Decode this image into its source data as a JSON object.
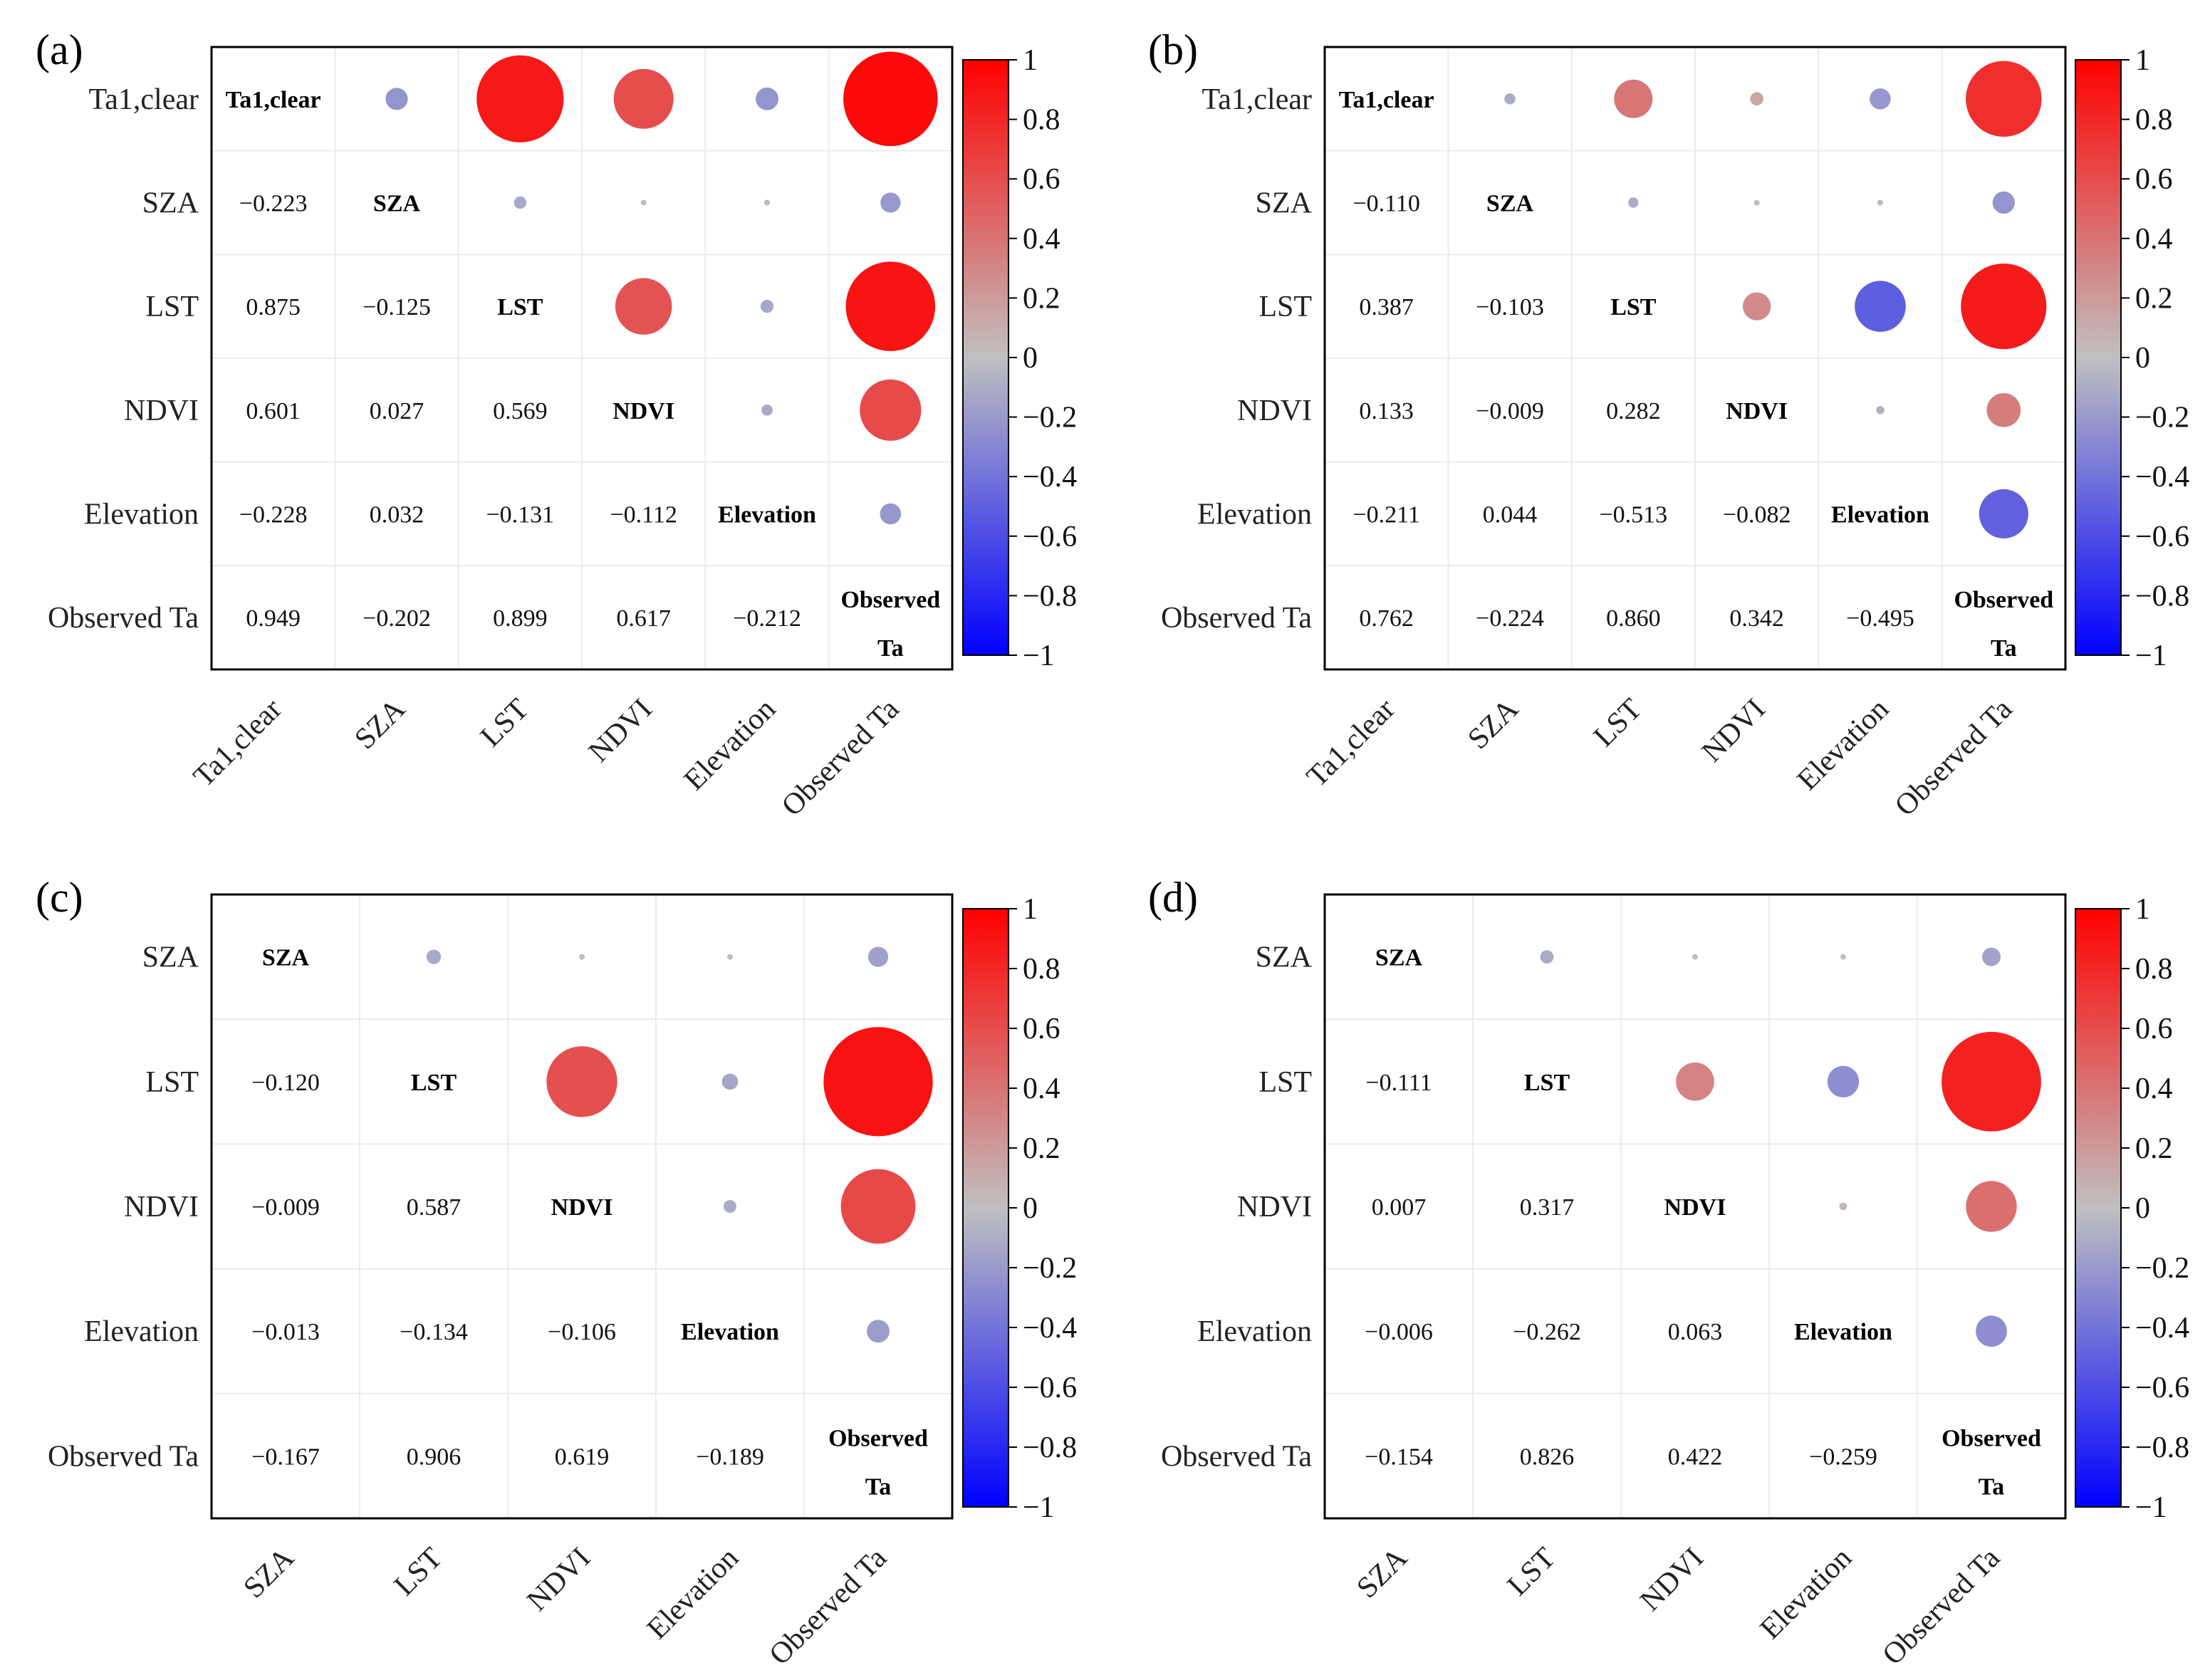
{
  "colors": {
    "negative": "#0000ff",
    "neutral": "#c0c0c0",
    "positive": "#ff0000"
  },
  "chart_data": [
    {
      "type": "heatmap",
      "panel_label": "(a)",
      "variables": [
        "Ta1,clear",
        "SZA",
        "LST",
        "NDVI",
        "Elevation",
        "Observed Ta"
      ],
      "diagonal_labels": [
        "Ta1,clear",
        "SZA",
        "LST",
        "NDVI",
        "Elevation",
        "Observed\nTa"
      ],
      "matrix": [
        [
          1,
          -0.223,
          0.875,
          0.601,
          -0.228,
          0.949
        ],
        [
          -0.223,
          1,
          -0.125,
          0.027,
          0.032,
          -0.202
        ],
        [
          0.875,
          -0.125,
          1,
          0.569,
          -0.131,
          0.899
        ],
        [
          0.601,
          0.027,
          0.569,
          1,
          -0.112,
          0.617
        ],
        [
          -0.228,
          0.032,
          -0.131,
          -0.112,
          1,
          -0.212
        ],
        [
          0.949,
          -0.202,
          0.899,
          0.617,
          -0.212,
          1
        ]
      ],
      "value_labels": [
        [
          "",
          "",
          "",
          "",
          "",
          ""
        ],
        [
          "−0.223",
          "",
          "",
          "",
          "",
          ""
        ],
        [
          "0.875",
          "−0.125",
          "",
          "",
          "",
          ""
        ],
        [
          "0.601",
          "0.027",
          "0.569",
          "",
          "",
          ""
        ],
        [
          "−0.228",
          "0.032",
          "−0.131",
          "−0.112",
          "",
          ""
        ],
        [
          "0.949",
          "−0.202",
          "0.899",
          "0.617",
          "−0.212",
          ""
        ]
      ],
      "colorbar": {
        "range": [
          -1,
          1
        ],
        "ticks": [
          "1",
          "0.8",
          "0.6",
          "0.4",
          "0.2",
          "0",
          "−0.2",
          "−0.4",
          "−0.6",
          "−0.8",
          "−1"
        ]
      }
    },
    {
      "type": "heatmap",
      "panel_label": "(b)",
      "variables": [
        "Ta1,clear",
        "SZA",
        "LST",
        "NDVI",
        "Elevation",
        "Observed Ta"
      ],
      "diagonal_labels": [
        "Ta1,clear",
        "SZA",
        "LST",
        "NDVI",
        "Elevation",
        "Observed\nTa"
      ],
      "matrix": [
        [
          1,
          -0.11,
          0.387,
          0.133,
          -0.211,
          0.762
        ],
        [
          -0.11,
          1,
          -0.103,
          -0.009,
          0.044,
          -0.224
        ],
        [
          0.387,
          -0.103,
          1,
          0.282,
          -0.513,
          0.86
        ],
        [
          0.133,
          -0.009,
          0.282,
          1,
          -0.082,
          0.342
        ],
        [
          -0.211,
          0.044,
          -0.513,
          -0.082,
          1,
          -0.495
        ],
        [
          0.762,
          -0.224,
          0.86,
          0.342,
          -0.495,
          1
        ]
      ],
      "value_labels": [
        [
          "",
          "",
          "",
          "",
          "",
          ""
        ],
        [
          "−0.110",
          "",
          "",
          "",
          "",
          ""
        ],
        [
          "0.387",
          "−0.103",
          "",
          "",
          "",
          ""
        ],
        [
          "0.133",
          "−0.009",
          "0.282",
          "",
          "",
          ""
        ],
        [
          "−0.211",
          "0.044",
          "−0.513",
          "−0.082",
          "",
          ""
        ],
        [
          "0.762",
          "−0.224",
          "0.860",
          "0.342",
          "−0.495",
          ""
        ]
      ],
      "colorbar": {
        "range": [
          -1,
          1
        ],
        "ticks": [
          "1",
          "0.8",
          "0.6",
          "0.4",
          "0.2",
          "0",
          "−0.2",
          "−0.4",
          "−0.6",
          "−0.8",
          "−1"
        ]
      }
    },
    {
      "type": "heatmap",
      "panel_label": "(c)",
      "variables": [
        "SZA",
        "LST",
        "NDVI",
        "Elevation",
        "Observed Ta"
      ],
      "diagonal_labels": [
        "SZA",
        "LST",
        "NDVI",
        "Elevation",
        "Observed\nTa"
      ],
      "matrix": [
        [
          1,
          -0.12,
          -0.009,
          -0.013,
          -0.167
        ],
        [
          -0.12,
          1,
          0.587,
          -0.134,
          0.906
        ],
        [
          -0.009,
          0.587,
          1,
          -0.106,
          0.619
        ],
        [
          -0.013,
          -0.134,
          -0.106,
          1,
          -0.189
        ],
        [
          -0.167,
          0.906,
          0.619,
          -0.189,
          1
        ]
      ],
      "value_labels": [
        [
          "",
          "",
          "",
          "",
          ""
        ],
        [
          "−0.120",
          "",
          "",
          "",
          ""
        ],
        [
          "−0.009",
          "0.587",
          "",
          "",
          ""
        ],
        [
          "−0.013",
          "−0.134",
          "−0.106",
          "",
          ""
        ],
        [
          "−0.167",
          "0.906",
          "0.619",
          "−0.189",
          ""
        ]
      ],
      "colorbar": {
        "range": [
          -1,
          1
        ],
        "ticks": [
          "1",
          "0.8",
          "0.6",
          "0.4",
          "0.2",
          "0",
          "−0.2",
          "−0.4",
          "−0.6",
          "−0.8",
          "−1"
        ]
      }
    },
    {
      "type": "heatmap",
      "panel_label": "(d)",
      "variables": [
        "SZA",
        "LST",
        "NDVI",
        "Elevation",
        "Observed Ta"
      ],
      "diagonal_labels": [
        "SZA",
        "LST",
        "NDVI",
        "Elevation",
        "Observed\nTa"
      ],
      "matrix": [
        [
          1,
          -0.111,
          0.007,
          -0.006,
          -0.154
        ],
        [
          -0.111,
          1,
          0.317,
          -0.262,
          0.826
        ],
        [
          0.007,
          0.317,
          1,
          0.063,
          0.422
        ],
        [
          -0.006,
          -0.262,
          0.063,
          1,
          -0.259
        ],
        [
          -0.154,
          0.826,
          0.422,
          -0.259,
          1
        ]
      ],
      "value_labels": [
        [
          "",
          "",
          "",
          "",
          ""
        ],
        [
          "−0.111",
          "",
          "",
          "",
          ""
        ],
        [
          "0.007",
          "0.317",
          "",
          "",
          ""
        ],
        [
          "−0.006",
          "−0.262",
          "0.063",
          "",
          ""
        ],
        [
          "−0.154",
          "0.826",
          "0.422",
          "−0.259",
          ""
        ]
      ],
      "colorbar": {
        "range": [
          -1,
          1
        ],
        "ticks": [
          "1",
          "0.8",
          "0.6",
          "0.4",
          "0.2",
          "0",
          "−0.2",
          "−0.4",
          "−0.6",
          "−0.8",
          "−1"
        ]
      }
    }
  ]
}
